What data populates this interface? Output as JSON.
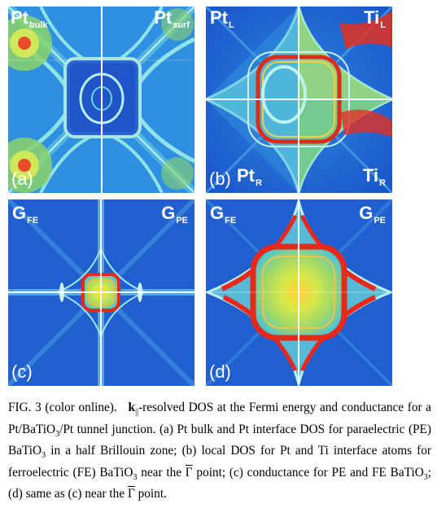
{
  "panels": {
    "a": {
      "letter": "(a)",
      "left": {
        "base": "Pt",
        "sub": "bulk"
      },
      "right": {
        "base": "Pt",
        "sub": "surf"
      }
    },
    "b": {
      "letter": "(b)",
      "tl": {
        "base": "Pt",
        "sub": "L"
      },
      "tr": {
        "base": "Ti",
        "sub": "L"
      },
      "bl": {
        "base": "Pt",
        "sub": "R"
      },
      "br": {
        "base": "Ti",
        "sub": "R"
      }
    },
    "c": {
      "letter": "(c)",
      "tl": {
        "base": "G",
        "sub": "FE"
      },
      "tr": {
        "base": "G",
        "sub": "PE"
      }
    },
    "d": {
      "letter": "(d)",
      "tl": {
        "base": "G",
        "sub": "FE"
      },
      "tr": {
        "base": "G",
        "sub": "PE"
      }
    }
  },
  "caption": {
    "p1": "FIG. 3 (color online).",
    "p2_k": "k",
    "p2_sub": "||",
    "p3": "-resolved DOS at the Fermi energy and conductance for a Pt/BaTiO",
    "s1": "3",
    "p4": "/Pt tunnel junction. (a) Pt bulk and Pt interface DOS for paraelectric (PE) BaTiO",
    "s2": "3",
    "p5": " in a half Brillouin zone; (b) local DOS for Pt and Ti interface atoms for ferroelectric (FE) BaTiO",
    "s3": "3",
    "p6": " near the ",
    "g1": "Γ",
    "p7": " point; (c) conductance for PE and FE BaTiO",
    "s4": "3",
    "p8": "; (d) same as (c) near the ",
    "g2": "Γ",
    "p9": " point."
  }
}
